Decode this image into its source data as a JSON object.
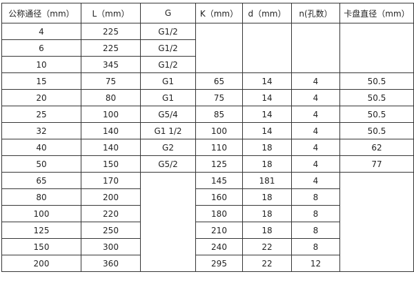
{
  "table": {
    "headers": [
      "公称通径（mm）",
      "L（mm）",
      "G",
      "K（mm）",
      "d（mm）",
      "n(孔数）",
      "卡盘直径（mm）"
    ],
    "rows": [
      [
        "4",
        "225",
        "G1/2",
        "",
        "",
        "",
        ""
      ],
      [
        "6",
        "225",
        "G1/2",
        "",
        "",
        "",
        ""
      ],
      [
        "10",
        "345",
        "G1/2",
        "",
        "",
        "",
        ""
      ],
      [
        "15",
        "75",
        "G1",
        "65",
        "14",
        "4",
        "50.5"
      ],
      [
        "20",
        "80",
        "G1",
        "75",
        "14",
        "4",
        "50.5"
      ],
      [
        "25",
        "100",
        "G5/4",
        "85",
        "14",
        "4",
        "50.5"
      ],
      [
        "32",
        "140",
        "G1  1/2",
        "100",
        "14",
        "4",
        "50.5"
      ],
      [
        "40",
        "140",
        "G2",
        "110",
        "18",
        "4",
        "62"
      ],
      [
        "50",
        "150",
        "G5/2",
        "125",
        "18",
        "4",
        "77"
      ],
      [
        "65",
        "170",
        "",
        "145",
        "181",
        "4",
        ""
      ],
      [
        "80",
        "200",
        "",
        "160",
        "18",
        "8",
        ""
      ],
      [
        "100",
        "220",
        "",
        "180",
        "18",
        "8",
        ""
      ],
      [
        "125",
        "250",
        "",
        "210",
        "18",
        "8",
        ""
      ],
      [
        "150",
        "300",
        "",
        "240",
        "22",
        "8",
        ""
      ],
      [
        "200",
        "360",
        "",
        "295",
        "22",
        "12",
        ""
      ]
    ]
  }
}
